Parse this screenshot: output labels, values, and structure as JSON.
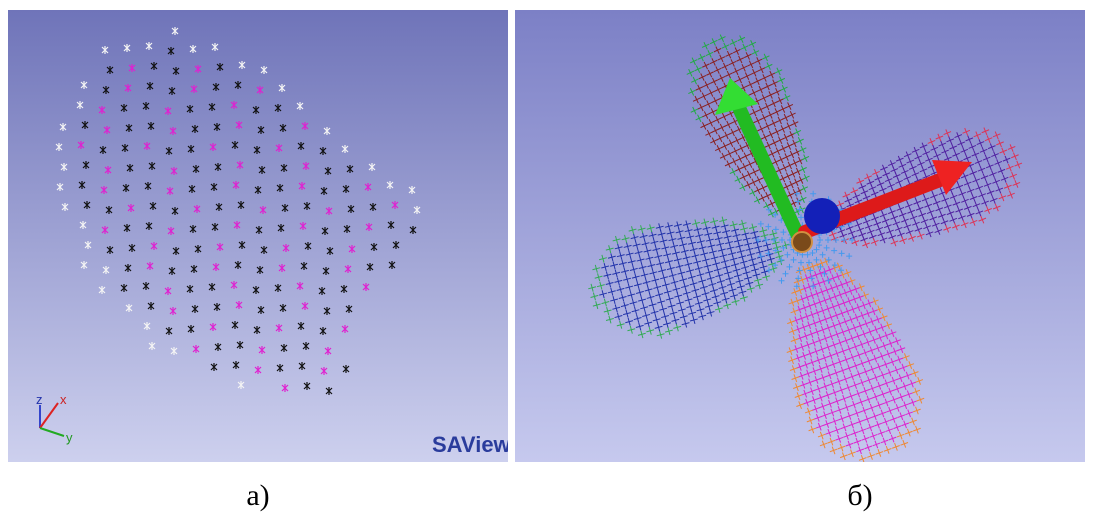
{
  "panels": [
    {
      "label": "a)",
      "watermark": "SAView",
      "axes": [
        "z",
        "x",
        "y"
      ]
    },
    {
      "label": "б)"
    }
  ]
}
